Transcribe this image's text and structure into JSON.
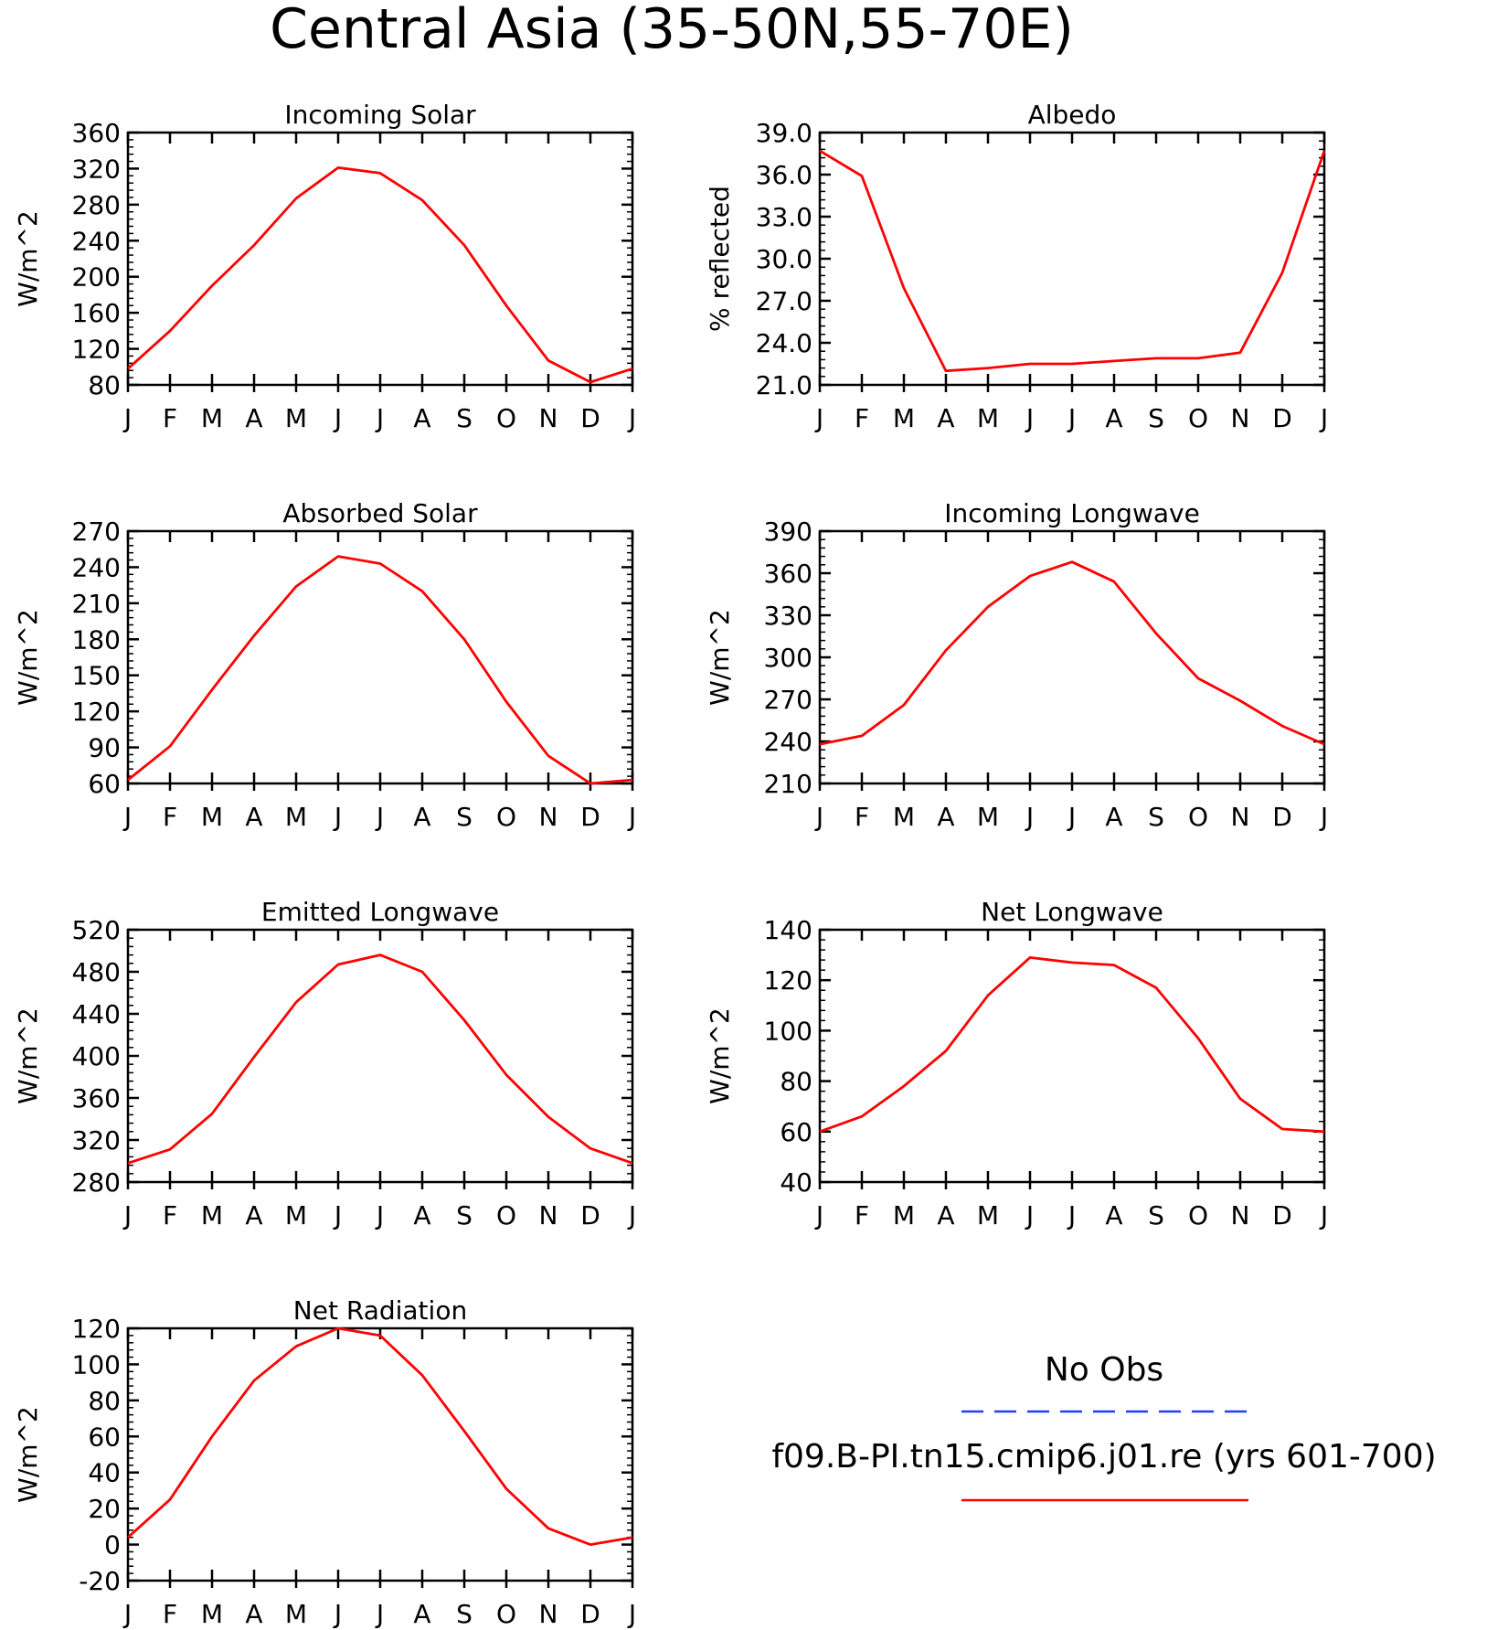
{
  "figure_title": "Central Asia (35-50N,55-70E)",
  "months": [
    "J",
    "F",
    "M",
    "A",
    "M",
    "J",
    "J",
    "A",
    "S",
    "O",
    "N",
    "D",
    "J"
  ],
  "legend": {
    "obs_label": "No Obs",
    "obs_color": "#1f3fff",
    "model_label": "f09.B-PI.tn15.cmip6.j01.re (yrs 601-700)",
    "model_color": "#ff0000"
  },
  "chart_data": [
    {
      "type": "line",
      "title": "Incoming Solar",
      "ylabel": "W/m^2",
      "ylim": [
        80,
        360
      ],
      "yticks": [
        "80",
        "120",
        "160",
        "200",
        "240",
        "280",
        "320",
        "360"
      ],
      "series": [
        {
          "color": "#ff0000",
          "values": [
            98,
            140,
            190,
            235,
            287,
            321,
            315,
            285,
            235,
            168,
            107,
            83,
            98
          ]
        }
      ]
    },
    {
      "type": "line",
      "title": "Albedo",
      "ylabel": "% reflected",
      "ylim": [
        21,
        39
      ],
      "yticks": [
        "21.0",
        "24.0",
        "27.0",
        "30.0",
        "33.0",
        "36.0",
        "39.0"
      ],
      "series": [
        {
          "color": "#ff0000",
          "values": [
            37.7,
            35.9,
            27.9,
            22.0,
            22.2,
            22.5,
            22.5,
            22.7,
            22.9,
            22.9,
            23.3,
            29.0,
            37.7
          ]
        }
      ]
    },
    {
      "type": "line",
      "title": "Absorbed Solar",
      "ylabel": "W/m^2",
      "ylim": [
        60,
        270
      ],
      "yticks": [
        "60",
        "90",
        "120",
        "150",
        "180",
        "210",
        "240",
        "270"
      ],
      "series": [
        {
          "color": "#ff0000",
          "values": [
            63,
            91,
            138,
            183,
            224,
            249,
            243,
            220,
            180,
            128,
            83,
            60,
            63
          ]
        }
      ]
    },
    {
      "type": "line",
      "title": "Incoming Longwave",
      "ylabel": "W/m^2",
      "ylim": [
        210,
        390
      ],
      "yticks": [
        "210",
        "240",
        "270",
        "300",
        "330",
        "360",
        "390"
      ],
      "series": [
        {
          "color": "#ff0000",
          "values": [
            238,
            244,
            266,
            305,
            336,
            358,
            368,
            354,
            317,
            285,
            269,
            251,
            238
          ]
        }
      ]
    },
    {
      "type": "line",
      "title": "Emitted Longwave",
      "ylabel": "W/m^2",
      "ylim": [
        280,
        520
      ],
      "yticks": [
        "280",
        "320",
        "360",
        "400",
        "440",
        "480",
        "520"
      ],
      "series": [
        {
          "color": "#ff0000",
          "values": [
            298,
            311,
            345,
            399,
            451,
            487,
            496,
            480,
            434,
            382,
            342,
            312,
            298
          ]
        }
      ]
    },
    {
      "type": "line",
      "title": "Net Longwave",
      "ylabel": "W/m^2",
      "ylim": [
        40,
        140
      ],
      "yticks": [
        "40",
        "60",
        "80",
        "100",
        "120",
        "140"
      ],
      "series": [
        {
          "color": "#ff0000",
          "values": [
            60,
            66,
            78,
            92,
            114,
            129,
            127,
            126,
            117,
            97,
            73,
            61,
            60
          ]
        }
      ]
    },
    {
      "type": "line",
      "title": "Net Radiation",
      "ylabel": "W/m^2",
      "ylim": [
        -20,
        120
      ],
      "yticks": [
        "-20",
        "0",
        "20",
        "40",
        "60",
        "80",
        "100",
        "120"
      ],
      "series": [
        {
          "color": "#ff0000",
          "values": [
            4,
            25,
            60,
            91,
            110,
            120,
            116,
            94,
            63,
            31,
            9,
            0,
            4
          ]
        }
      ]
    }
  ]
}
